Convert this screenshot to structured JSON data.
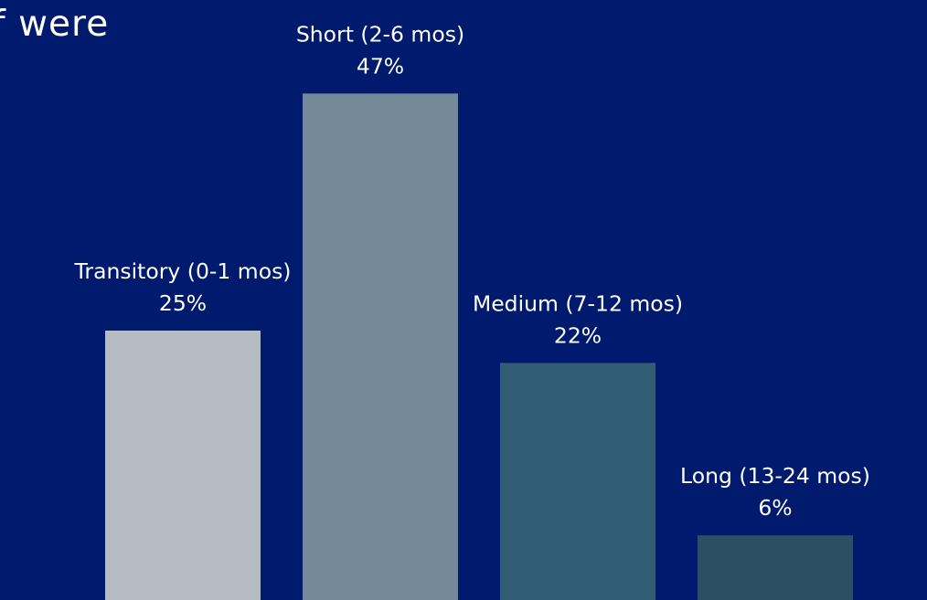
{
  "heading_fragment": "f were",
  "chart_data": {
    "type": "bar",
    "categories": [
      "Transitory (0-1 mos)",
      "Short (2-6 mos)",
      "Medium (7-12 mos)",
      "Long (13-24 mos)"
    ],
    "values": [
      25,
      47,
      22,
      6
    ],
    "value_labels": [
      "25%",
      "47%",
      "22%",
      "6%"
    ],
    "colors": [
      "#b5bcc3",
      "#738999",
      "#325e75",
      "#2b4f63"
    ],
    "background": "#001a6e",
    "gridlines": false,
    "legend": "none",
    "axes_visible": false
  }
}
